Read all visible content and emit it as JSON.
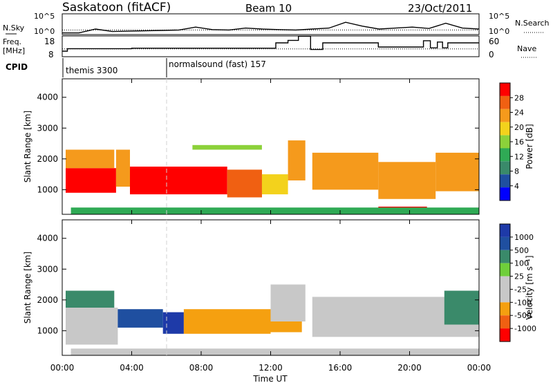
{
  "header": {
    "station": "Saskatoon (fitACF)",
    "beam": "Beam 10",
    "date": "23/Oct/2011"
  },
  "colors": {
    "power_scale": [
      "#0000ff",
      "#1f4fa0",
      "#3a8a6a",
      "#2faa55",
      "#8cd13a",
      "#f3d21c",
      "#f59a1c",
      "#f06012",
      "#ff0000"
    ],
    "velocity_scale": [
      "#ff0000",
      "#f06012",
      "#f5a010",
      "#c8c8c8",
      "#c8c8c8",
      "#6fcf3a",
      "#3a8a6a",
      "#1f4fa0",
      "#1e3aa8"
    ],
    "ground_scatter": "#c0c0c0"
  },
  "chart_data": [
    {
      "type": "line",
      "panel": "nsky-nsearch",
      "left_label": "N.Sky",
      "right_label": "N.Search",
      "left_ticks": [
        "10^5",
        "10^0"
      ],
      "right_ticks": [
        "10^5",
        "10^0"
      ],
      "series": [
        {
          "name": "N.Sky",
          "style": "solid",
          "values": [
            0.05,
            0.05,
            0.25,
            0.12,
            0.14,
            0.16,
            0.18,
            0.2,
            0.35,
            0.22,
            0.2,
            0.3,
            0.25,
            0.22,
            0.2,
            0.25,
            0.3,
            0.6,
            0.4,
            0.25,
            0.3,
            0.35,
            0.28,
            0.55,
            0.3,
            0.25
          ]
        },
        {
          "name": "N.Search",
          "style": "dotted",
          "values": [
            0.2,
            0.2,
            0.2,
            0.2,
            0.2,
            0.2,
            0.2,
            0.2,
            0.2,
            0.2,
            0.2,
            0.2,
            0.2,
            0.2,
            0.2,
            0.2,
            0.2,
            0.2,
            0.2,
            0.2,
            0.2,
            0.2,
            0.2,
            0.2,
            0.2,
            0.2
          ]
        }
      ]
    },
    {
      "type": "line",
      "panel": "freq-nave",
      "left_label_1": "Freq.",
      "left_label_2": "[MHz]",
      "right_label": "Nave",
      "left_ticks": [
        "18",
        "8"
      ],
      "right_ticks": [
        "60",
        "0"
      ],
      "series": [
        {
          "name": "Freq.",
          "style": "solid",
          "x": [
            0,
            0.3,
            0.6,
            4,
            6,
            8,
            10,
            12,
            12.3,
            13,
            13.6,
            14.3,
            15,
            18.2,
            19,
            20.8,
            21.2,
            21.6,
            21.9,
            22.2,
            24
          ],
          "y": [
            10.5,
            12,
            12,
            12.3,
            12.3,
            12.3,
            12.3,
            12.3,
            15.5,
            17,
            19.5,
            11.5,
            15.5,
            13,
            13,
            16.8,
            12.5,
            16,
            12.5,
            15.5,
            15.5
          ]
        },
        {
          "name": "Nave",
          "style": "dotted",
          "x": [
            0,
            24
          ],
          "y": [
            23,
            23
          ]
        }
      ]
    },
    {
      "type": "table",
      "panel": "cpid",
      "label": "CPID",
      "entries": [
        {
          "start": "00:00",
          "text": "themis 3300"
        },
        {
          "start": "06:00",
          "text": "normalsound (fast) 157"
        }
      ]
    },
    {
      "type": "heatmap",
      "panel": "power",
      "ylabel": "Slant Range [km]",
      "xlabel": "",
      "xlim": [
        0,
        24
      ],
      "ylim": [
        200,
        4600
      ],
      "yticks": [
        1000,
        2000,
        3000,
        4000
      ],
      "colorbar_label": "Power [dB]",
      "colorbar_ticks": [
        4,
        8,
        12,
        16,
        20,
        24,
        28
      ],
      "regions": [
        {
          "t0": 0.2,
          "t1": 3.1,
          "r0": 900,
          "r1": 1700,
          "level": 8
        },
        {
          "t0": 3.1,
          "t1": 3.9,
          "r0": 1100,
          "r1": 2300,
          "level": 6
        },
        {
          "t0": 3.9,
          "t1": 9.5,
          "r0": 850,
          "r1": 1750,
          "level": 8
        },
        {
          "t0": 9.5,
          "t1": 11.5,
          "r0": 750,
          "r1": 1650,
          "level": 7
        },
        {
          "t0": 11.5,
          "t1": 13.0,
          "r0": 850,
          "r1": 1500,
          "level": 5
        },
        {
          "t0": 13.0,
          "t1": 14.0,
          "r0": 1300,
          "r1": 2600,
          "level": 6
        },
        {
          "t0": 14.4,
          "t1": 18.2,
          "r0": 1000,
          "r1": 2200,
          "level": 6
        },
        {
          "t0": 18.2,
          "t1": 21.5,
          "r0": 700,
          "r1": 1900,
          "level": 6
        },
        {
          "t0": 21.5,
          "t1": 24.0,
          "r0": 950,
          "r1": 2200,
          "level": 6
        },
        {
          "t0": 18.2,
          "t1": 21.0,
          "r0": 250,
          "r1": 450,
          "level": 8
        },
        {
          "t0": 0.2,
          "t1": 3.0,
          "r0": 1700,
          "r1": 2300,
          "level": 6
        },
        {
          "t0": 7.5,
          "t1": 11.5,
          "r0": 2300,
          "r1": 2450,
          "level": 4
        },
        {
          "t0": 0.5,
          "t1": 24.0,
          "r0": 200,
          "r1": 420,
          "level": 3
        }
      ]
    },
    {
      "type": "heatmap",
      "panel": "velocity",
      "ylabel": "Slant Range [km]",
      "xlabel": "Time UT",
      "xlim": [
        0,
        24
      ],
      "ylim": [
        200,
        4600
      ],
      "yticks": [
        1000,
        2000,
        3000,
        4000
      ],
      "xticks": [
        "00:00",
        "04:00",
        "08:00",
        "12:00",
        "16:00",
        "20:00",
        "00:00"
      ],
      "colorbar_label": "Velocity [m s⁻¹]",
      "colorbar_ticks": [
        "1000",
        "500",
        "100",
        "25",
        "-25",
        "-100",
        "-500",
        "-1000"
      ],
      "regions": [
        {
          "t0": 0.2,
          "t1": 3.2,
          "r0": 550,
          "r1": 1750,
          "level": 3
        },
        {
          "t0": 3.2,
          "t1": 5.8,
          "r0": 1100,
          "r1": 1700,
          "level": 7
        },
        {
          "t0": 5.8,
          "t1": 7.0,
          "r0": 900,
          "r1": 1600,
          "level": 8
        },
        {
          "t0": 7.0,
          "t1": 12.0,
          "r0": 900,
          "r1": 1700,
          "level": 2
        },
        {
          "t0": 11.5,
          "t1": 13.8,
          "r0": 950,
          "r1": 1400,
          "level": 2
        },
        {
          "t0": 12.0,
          "t1": 14.0,
          "r0": 1300,
          "r1": 2500,
          "level": 3
        },
        {
          "t0": 14.4,
          "t1": 24.0,
          "r0": 800,
          "r1": 2100,
          "level": 3
        },
        {
          "t0": 0.2,
          "t1": 3.0,
          "r0": 1750,
          "r1": 2300,
          "level": 6
        },
        {
          "t0": 22.0,
          "t1": 24.0,
          "r0": 1200,
          "r1": 2300,
          "level": 6
        },
        {
          "t0": 0.5,
          "t1": 24.0,
          "r0": 200,
          "r1": 420,
          "level": 3
        }
      ]
    }
  ]
}
